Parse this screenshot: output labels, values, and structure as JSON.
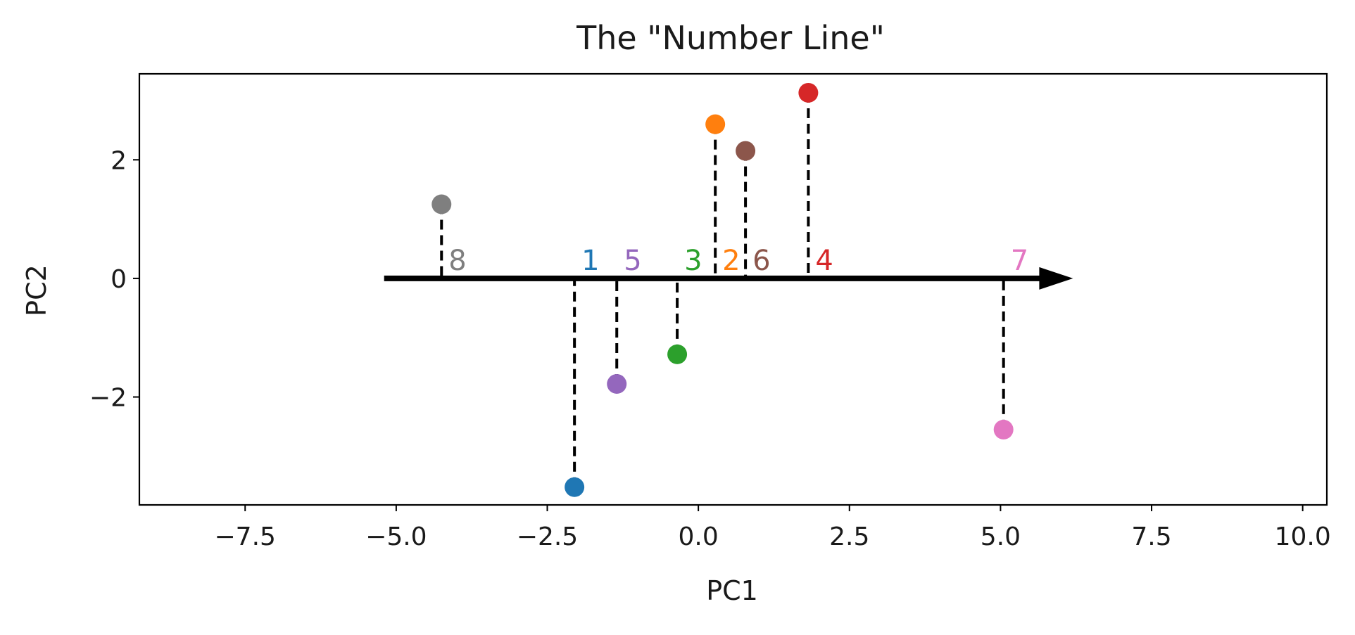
{
  "chart_data": {
    "type": "scatter",
    "title": "The \"Number Line\"",
    "xlabel": "PC1",
    "ylabel": "PC2",
    "xlim": [
      -9.25,
      10.4
    ],
    "ylim": [
      -3.82,
      3.45
    ],
    "xticks": [
      -7.5,
      -5.0,
      -2.5,
      0.0,
      2.5,
      5.0,
      7.5,
      10.0
    ],
    "xtick_labels": [
      "−7.5",
      "−5.0",
      "−2.5",
      "0.0",
      "2.5",
      "5.0",
      "7.5",
      "10.0"
    ],
    "yticks": [
      -2,
      0,
      2
    ],
    "ytick_labels": [
      "−2",
      "0",
      "2"
    ],
    "grid": false,
    "number_line": {
      "y": 0,
      "x_start": -5.2,
      "x_end": 6.2,
      "color": "#000000"
    },
    "points": [
      {
        "label": "1",
        "x": -2.05,
        "y": -3.52,
        "color": "#1f77b4"
      },
      {
        "label": "2",
        "x": 0.28,
        "y": 2.6,
        "color": "#ff7f0e"
      },
      {
        "label": "3",
        "x": -0.35,
        "y": -1.28,
        "color": "#2ca02c"
      },
      {
        "label": "4",
        "x": 1.82,
        "y": 3.13,
        "color": "#d62728"
      },
      {
        "label": "5",
        "x": -1.35,
        "y": -1.78,
        "color": "#9467bd"
      },
      {
        "label": "6",
        "x": 0.78,
        "y": 2.15,
        "color": "#8c564b"
      },
      {
        "label": "7",
        "x": 5.05,
        "y": -2.55,
        "color": "#e377c2"
      },
      {
        "label": "8",
        "x": -4.25,
        "y": 1.25,
        "color": "#7f7f7f"
      }
    ]
  }
}
